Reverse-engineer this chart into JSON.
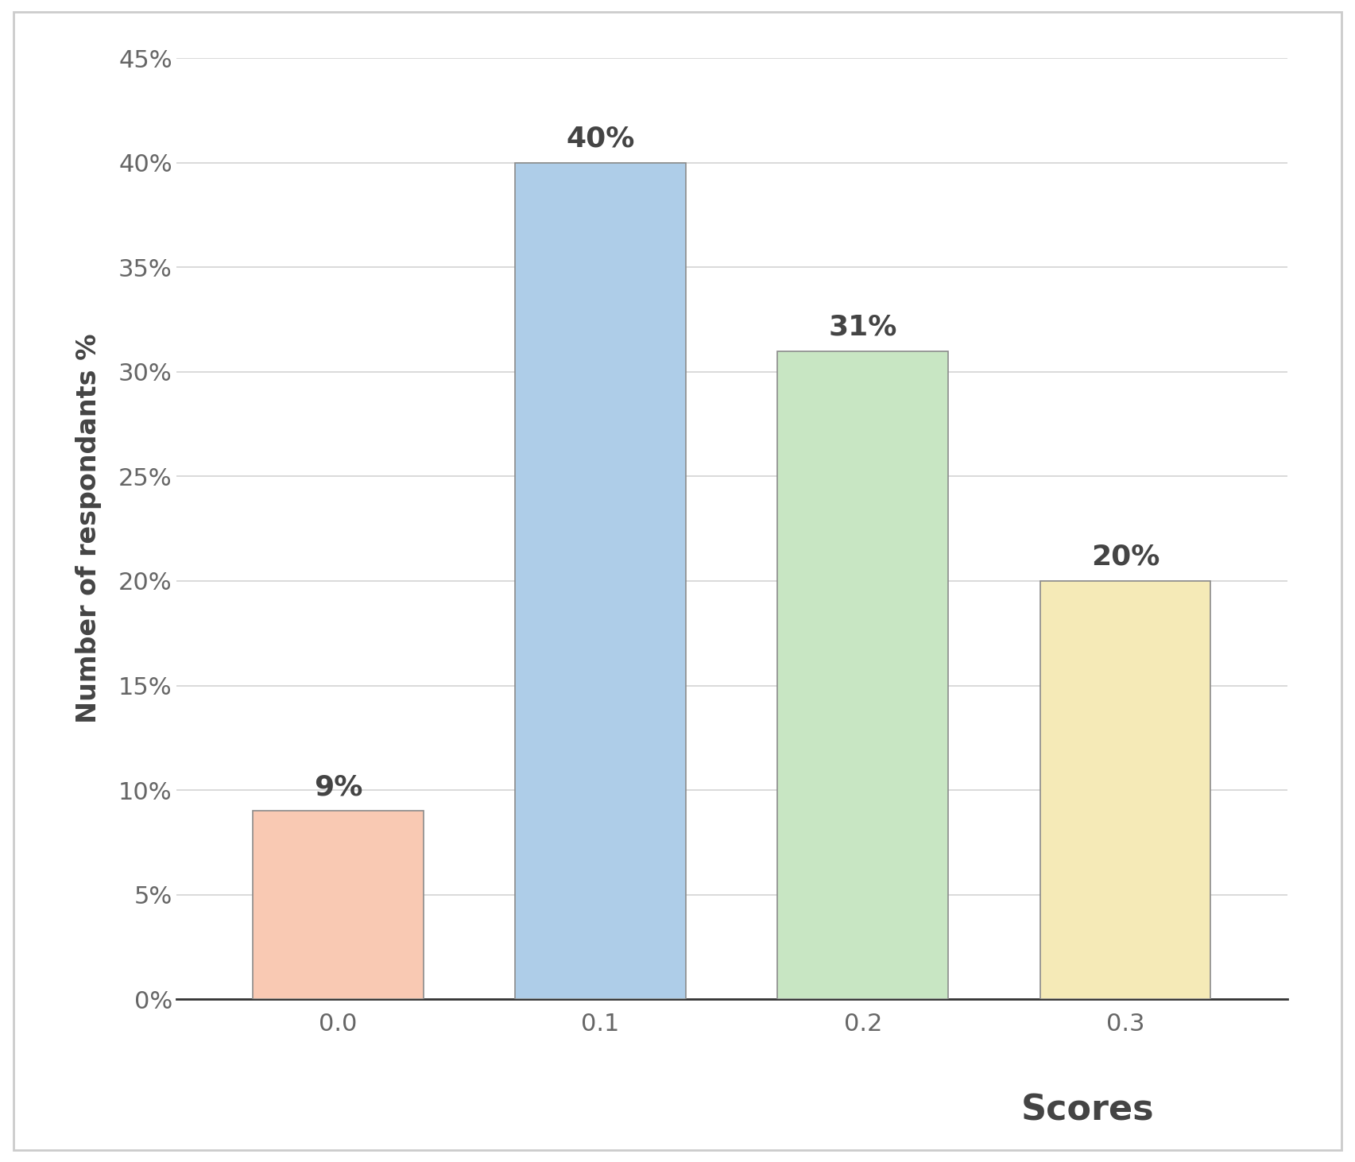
{
  "categories": [
    "0.0",
    "0.1",
    "0.2",
    "0.3"
  ],
  "values": [
    9,
    40,
    31,
    20
  ],
  "bar_colors": [
    "#F9C9B3",
    "#AECDE8",
    "#C8E6C3",
    "#F5EAB7"
  ],
  "bar_edge_colors": [
    "#8B8B8B",
    "#8B8B8B",
    "#8B8B8B",
    "#8B8B8B"
  ],
  "labels": [
    "9%",
    "40%",
    "31%",
    "20%"
  ],
  "xlabel": "Scores",
  "ylabel": "Number of respondants %",
  "ylim": [
    0,
    45
  ],
  "yticks": [
    0,
    5,
    10,
    15,
    20,
    25,
    30,
    35,
    40,
    45
  ],
  "ytick_labels": [
    "0%",
    "5%",
    "10%",
    "15%",
    "20%",
    "25%",
    "30%",
    "35%",
    "40%",
    "45%"
  ],
  "background_color": "#FFFFFF",
  "plot_bg_color": "#FFFFFF",
  "grid_color": "#D3D3D3",
  "outer_border_color": "#CCCCCC",
  "tick_color": "#666666",
  "label_color": "#444444",
  "tick_fontsize": 22,
  "bar_label_fontsize": 26,
  "xlabel_fontsize": 32,
  "ylabel_fontsize": 24,
  "bar_width": 0.65
}
